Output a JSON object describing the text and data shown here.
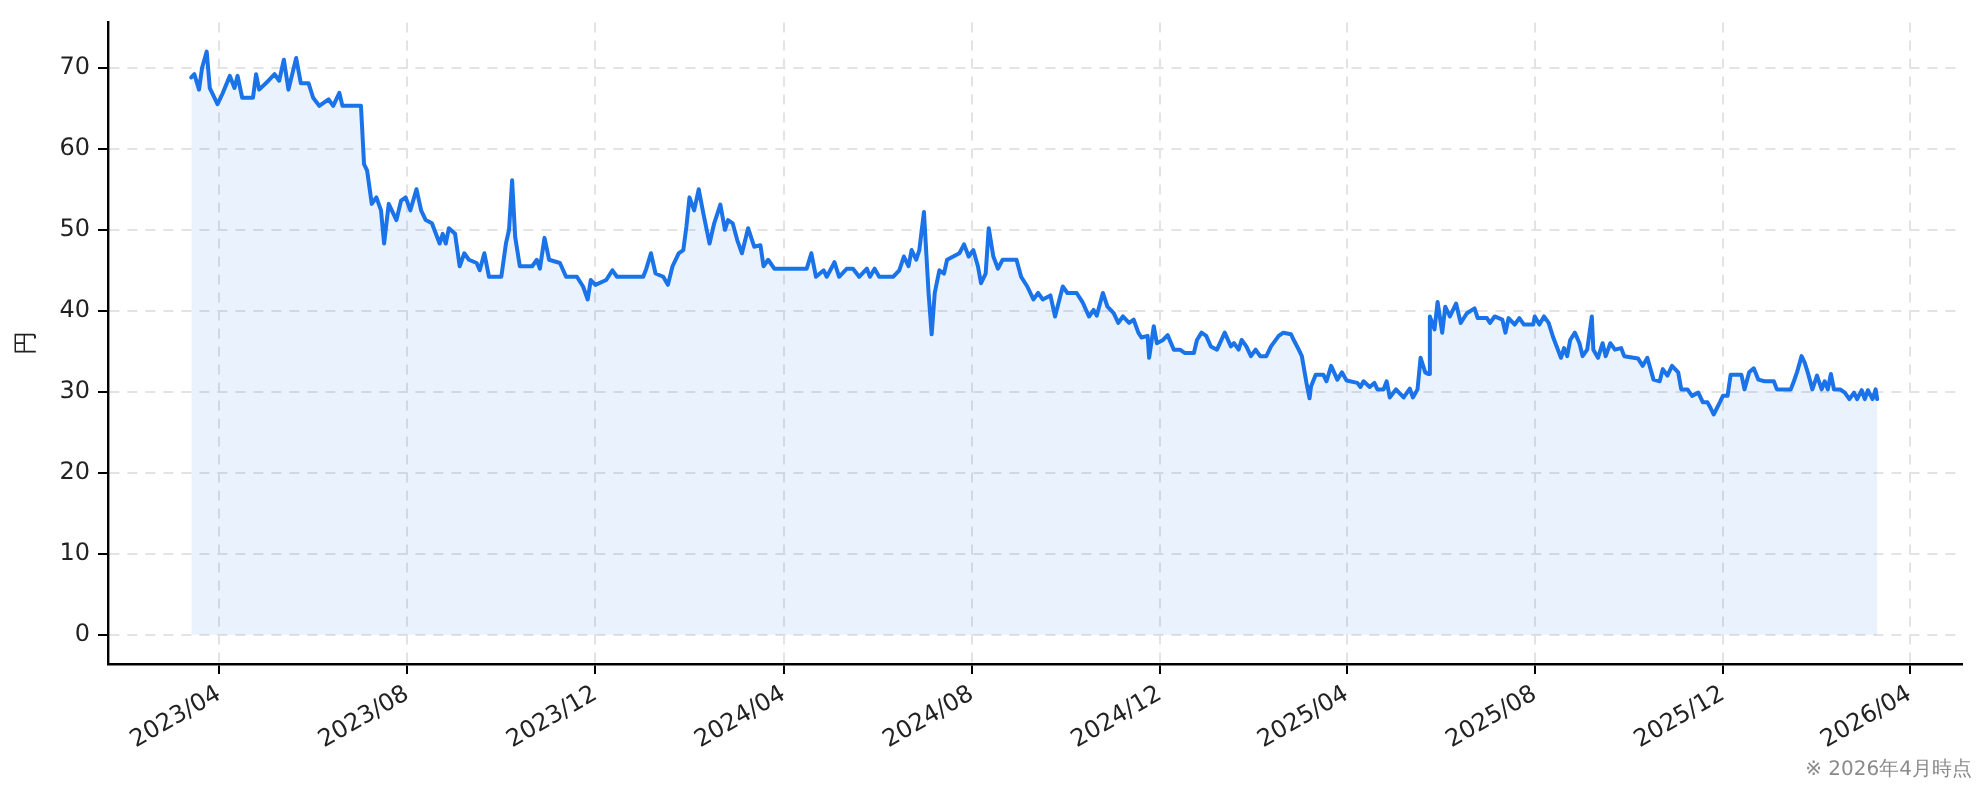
{
  "chart_data": {
    "type": "area",
    "ylabel": "円",
    "color": "#1a73e8",
    "x": [
      "2023-03-14",
      "2023-03-16",
      "2023-03-19",
      "2023-03-21",
      "2023-03-24",
      "2023-03-26",
      "2023-03-31",
      "2023-04-03",
      "2023-04-08",
      "2023-04-11",
      "2023-04-13",
      "2023-04-16",
      "2023-04-23",
      "2023-04-25",
      "2023-04-27",
      "2023-05-03",
      "2023-05-07",
      "2023-05-10",
      "2023-05-13",
      "2023-05-16",
      "2023-05-21",
      "2023-05-24",
      "2023-05-29",
      "2023-06-01",
      "2023-06-05",
      "2023-06-11",
      "2023-06-14",
      "2023-06-18",
      "2023-06-20",
      "2023-07-02",
      "2023-07-04",
      "2023-07-06",
      "2023-07-09",
      "2023-07-12",
      "2023-07-15",
      "2023-07-17",
      "2023-07-20",
      "2023-07-25",
      "2023-07-28",
      "2023-07-31",
      "2023-08-03",
      "2023-08-07",
      "2023-08-10",
      "2023-08-13",
      "2023-08-17",
      "2023-08-22",
      "2023-08-24",
      "2023-08-26",
      "2023-08-28",
      "2023-09-01",
      "2023-09-04",
      "2023-09-07",
      "2023-09-10",
      "2023-09-15",
      "2023-09-17",
      "2023-09-20",
      "2023-09-23",
      "2023-10-01",
      "2023-10-04",
      "2023-10-06",
      "2023-10-08",
      "2023-10-10",
      "2023-10-13",
      "2023-10-21",
      "2023-10-24",
      "2023-10-26",
      "2023-10-29",
      "2023-11-01",
      "2023-11-08",
      "2023-11-12",
      "2023-11-19",
      "2023-11-23",
      "2023-11-26",
      "2023-11-28",
      "2023-12-01",
      "2023-12-08",
      "2023-12-12",
      "2023-12-15",
      "2024-01-01",
      "2024-01-03",
      "2024-01-06",
      "2024-01-09",
      "2024-01-14",
      "2024-01-17",
      "2024-01-20",
      "2024-01-24",
      "2024-01-27",
      "2024-01-29",
      "2024-01-31",
      "2024-02-03",
      "2024-02-06",
      "2024-02-09",
      "2024-02-13",
      "2024-02-16",
      "2024-02-20",
      "2024-02-23",
      "2024-02-25",
      "2024-02-28",
      "2024-03-02",
      "2024-03-05",
      "2024-03-09",
      "2024-03-13",
      "2024-03-17",
      "2024-03-19",
      "2024-03-22",
      "2024-03-26",
      "2024-04-16",
      "2024-04-19",
      "2024-04-22",
      "2024-04-27",
      "2024-04-29",
      "2024-05-04",
      "2024-05-07",
      "2024-05-12",
      "2024-05-16",
      "2024-05-20",
      "2024-05-25",
      "2024-05-27",
      "2024-05-30",
      "2024-06-02",
      "2024-06-11",
      "2024-06-15",
      "2024-06-18",
      "2024-06-21",
      "2024-06-23",
      "2024-06-26",
      "2024-06-28",
      "2024-07-01",
      "2024-07-04",
      "2024-07-06",
      "2024-07-08",
      "2024-07-11",
      "2024-07-14",
      "2024-07-16",
      "2024-07-20",
      "2024-07-24",
      "2024-07-27",
      "2024-07-30",
      "2024-08-02",
      "2024-08-05",
      "2024-08-07",
      "2024-08-10",
      "2024-08-12",
      "2024-08-15",
      "2024-08-18",
      "2024-08-21",
      "2024-08-30",
      "2024-09-02",
      "2024-09-06",
      "2024-09-10",
      "2024-09-13",
      "2024-09-16",
      "2024-09-21",
      "2024-09-24",
      "2024-09-29",
      "2024-10-02",
      "2024-10-08",
      "2024-10-12",
      "2024-10-16",
      "2024-10-19",
      "2024-10-21",
      "2024-10-25",
      "2024-10-28",
      "2024-11-01",
      "2024-11-04",
      "2024-11-07",
      "2024-11-11",
      "2024-11-14",
      "2024-11-17",
      "2024-11-19",
      "2024-11-23",
      "2024-11-24",
      "2024-11-27",
      "2024-11-29",
      "2024-12-03",
      "2024-12-06",
      "2024-12-10",
      "2024-12-14",
      "2024-12-17",
      "2024-12-23",
      "2024-12-25",
      "2024-12-28",
      "2024-12-31",
      "2025-01-03",
      "2025-01-07",
      "2025-01-12",
      "2025-01-16",
      "2025-01-18",
      "2025-01-21",
      "2025-01-23",
      "2025-01-26",
      "2025-01-29",
      "2025-02-01",
      "2025-02-04",
      "2025-02-08",
      "2025-02-11",
      "2025-02-16",
      "2025-02-19",
      "2025-02-24",
      "2025-02-26",
      "2025-03-01",
      "2025-03-03",
      "2025-03-06",
      "2025-03-08",
      "2025-03-09",
      "2025-03-12",
      "2025-03-17",
      "2025-03-19",
      "2025-03-22",
      "2025-03-26",
      "2025-03-29",
      "2025-04-01",
      "2025-04-08",
      "2025-04-10",
      "2025-04-12",
      "2025-04-16",
      "2025-04-19",
      "2025-04-21",
      "2025-04-25",
      "2025-04-27",
      "2025-04-29",
      "2025-05-03",
      "2025-05-08",
      "2025-05-12",
      "2025-05-14",
      "2025-05-17",
      "2025-05-19",
      "2025-05-22",
      "2025-05-24",
      "2025-05-25",
      "2025-05-28",
      "2025-05-30",
      "2025-06-02",
      "2025-06-04",
      "2025-06-07",
      "2025-06-11",
      "2025-06-14",
      "2025-06-18",
      "2025-06-23",
      "2025-06-25",
      "2025-07-01",
      "2025-07-03",
      "2025-07-06",
      "2025-07-11",
      "2025-07-13",
      "2025-07-15",
      "2025-07-19",
      "2025-07-22",
      "2025-07-25",
      "2025-07-31",
      "2025-08-01",
      "2025-08-04",
      "2025-08-07",
      "2025-08-10",
      "2025-08-13",
      "2025-08-18",
      "2025-08-20",
      "2025-08-22",
      "2025-08-24",
      "2025-08-27",
      "2025-08-30",
      "2025-09-01",
      "2025-09-04",
      "2025-09-07",
      "2025-09-08",
      "2025-09-11",
      "2025-09-14",
      "2025-09-16",
      "2025-09-19",
      "2025-09-22",
      "2025-09-26",
      "2025-09-28",
      "2025-10-04",
      "2025-10-07",
      "2025-10-10",
      "2025-10-13",
      "2025-10-17",
      "2025-10-21",
      "2025-10-23",
      "2025-10-26",
      "2025-10-29",
      "2025-11-02",
      "2025-11-04",
      "2025-11-08",
      "2025-11-11",
      "2025-11-15",
      "2025-11-18",
      "2025-11-21",
      "2025-11-23",
      "2025-11-25",
      "2025-11-29",
      "2025-12-01",
      "2025-12-04",
      "2025-12-06",
      "2025-12-13",
      "2025-12-15",
      "2025-12-18",
      "2025-12-21",
      "2025-12-24",
      "2025-12-28",
      "2026-01-03",
      "2026-01-05",
      "2026-01-14",
      "2026-01-16",
      "2026-01-18",
      "2026-01-21",
      "2026-01-23",
      "2026-01-25",
      "2026-01-28",
      "2026-01-31",
      "2026-02-03",
      "2026-02-05",
      "2026-02-07",
      "2026-02-09",
      "2026-02-11",
      "2026-02-15",
      "2026-02-18",
      "2026-02-21",
      "2026-02-24",
      "2026-02-26",
      "2026-03-01",
      "2026-03-03",
      "2026-03-05",
      "2026-03-08",
      "2026-03-10",
      "2026-03-11"
    ],
    "values": [
      68.8,
      69.2,
      67.3,
      70.0,
      72.0,
      67.5,
      65.5,
      66.7,
      69.0,
      67.5,
      69.0,
      66.3,
      66.3,
      69.2,
      67.3,
      68.4,
      69.2,
      68.4,
      71.0,
      67.3,
      71.2,
      68.1,
      68.1,
      66.3,
      65.3,
      66.1,
      65.3,
      66.9,
      65.3,
      65.3,
      58.1,
      57.3,
      53.2,
      54.0,
      52.4,
      48.3,
      53.2,
      51.2,
      53.6,
      54.0,
      52.4,
      55.0,
      52.4,
      51.2,
      50.8,
      48.3,
      49.5,
      48.3,
      50.2,
      49.5,
      45.5,
      47.1,
      46.3,
      45.9,
      45.0,
      47.1,
      44.2,
      44.2,
      48.3,
      50.0,
      56.1,
      49.1,
      45.5,
      45.5,
      46.3,
      45.2,
      49.0,
      46.3,
      45.9,
      44.2,
      44.2,
      43.0,
      41.4,
      43.8,
      43.2,
      43.8,
      45.0,
      44.2,
      44.2,
      45.2,
      47.1,
      44.6,
      44.2,
      43.2,
      45.5,
      47.1,
      47.5,
      50.4,
      54.0,
      52.4,
      55.0,
      52.0,
      48.3,
      50.8,
      53.1,
      50.0,
      51.2,
      50.8,
      48.7,
      47.1,
      50.2,
      47.9,
      48.1,
      45.5,
      46.3,
      45.2,
      45.2,
      47.1,
      44.2,
      45.0,
      44.2,
      46.0,
      44.2,
      45.2,
      45.2,
      44.2,
      45.2,
      44.2,
      45.2,
      44.2,
      44.2,
      45.0,
      46.7,
      45.5,
      47.5,
      46.3,
      47.5,
      52.2,
      42.2,
      37.1,
      42.2,
      45.0,
      44.6,
      46.3,
      46.7,
      47.1,
      48.2,
      46.7,
      47.5,
      45.5,
      43.4,
      44.6,
      50.2,
      46.7,
      45.2,
      46.3,
      46.3,
      44.2,
      43.0,
      41.4,
      42.2,
      41.4,
      41.9,
      39.3,
      43.0,
      42.2,
      42.2,
      41.0,
      39.3,
      40.1,
      39.4,
      42.2,
      40.5,
      39.7,
      38.5,
      39.3,
      38.5,
      38.9,
      37.3,
      36.7,
      36.9,
      34.2,
      38.1,
      36.0,
      36.4,
      37.0,
      35.2,
      35.2,
      34.8,
      34.8,
      36.4,
      37.3,
      36.9,
      35.6,
      35.2,
      37.3,
      35.6,
      36.0,
      35.2,
      36.4,
      35.6,
      34.4,
      35.2,
      34.4,
      34.4,
      35.6,
      36.9,
      37.3,
      37.1,
      36.3,
      35.2,
      34.4,
      31.1,
      29.2,
      30.7,
      32.1,
      32.1,
      31.3,
      33.2,
      31.5,
      32.4,
      31.4,
      31.1,
      30.6,
      31.3,
      30.6,
      31.1,
      30.3,
      30.3,
      31.3,
      29.3,
      30.3,
      29.3,
      30.4,
      29.3,
      30.3,
      34.2,
      32.4,
      32.2,
      39.3,
      37.7,
      41.1,
      37.3,
      40.5,
      39.3,
      40.9,
      38.5,
      39.7,
      40.3,
      39.1,
      39.1,
      38.5,
      39.3,
      38.9,
      37.3,
      39.1,
      38.3,
      39.1,
      38.3,
      38.3,
      39.3,
      38.3,
      39.3,
      38.5,
      36.7,
      34.2,
      35.4,
      34.4,
      36.4,
      37.3,
      36.0,
      34.4,
      35.2,
      39.3,
      35.2,
      34.2,
      36.0,
      34.4,
      36.0,
      35.2,
      35.4,
      34.4,
      34.2,
      34.1,
      33.2,
      34.2,
      31.5,
      31.3,
      32.8,
      32.0,
      33.2,
      32.4,
      30.3,
      30.3,
      29.5,
      29.9,
      28.7,
      28.7,
      28.0,
      27.2,
      28.7,
      29.5,
      29.5,
      32.1,
      32.1,
      30.3,
      32.4,
      32.9,
      31.5,
      31.3,
      31.3,
      30.3,
      30.3,
      31.3,
      32.4,
      34.4,
      33.6,
      32.4,
      30.3,
      32.0,
      30.3,
      31.3,
      30.3,
      32.2,
      30.3,
      30.3,
      29.9,
      29.1,
      29.9,
      29.1,
      30.2,
      29.1,
      30.2,
      29.1,
      30.3,
      29.1
    ],
    "xlim": [
      "2023-01-19",
      "2026-05-05"
    ],
    "xticks": [
      {
        "value": "2023-04-01",
        "label": "2023/04"
      },
      {
        "value": "2023-08-01",
        "label": "2023/08"
      },
      {
        "value": "2023-12-01",
        "label": "2023/12"
      },
      {
        "value": "2024-04-01",
        "label": "2024/04"
      },
      {
        "value": "2024-08-01",
        "label": "2024/08"
      },
      {
        "value": "2024-12-01",
        "label": "2024/12"
      },
      {
        "value": "2025-04-01",
        "label": "2025/04"
      },
      {
        "value": "2025-08-01",
        "label": "2025/08"
      },
      {
        "value": "2025-12-01",
        "label": "2025/12"
      },
      {
        "value": "2026-04-01",
        "label": "2026/04"
      }
    ],
    "ylim": [
      -3.6,
      75.6
    ],
    "yticks": [
      0,
      10,
      20,
      30,
      40,
      50,
      60,
      70
    ],
    "grid": true,
    "annotations": [
      "※ 2026年4月時点"
    ]
  }
}
